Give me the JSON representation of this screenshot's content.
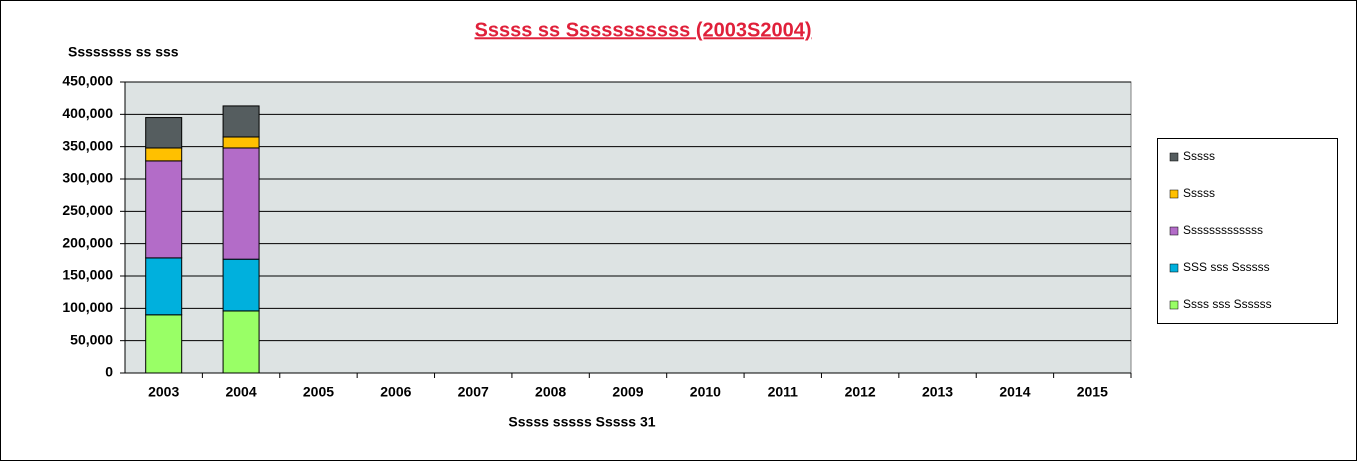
{
  "chart_data": {
    "type": "stacked_bar",
    "title": "Sssss ss Sssssssssss (2003S2004)",
    "y_label": "Ssssssss ss sss",
    "x_label": "Sssss sssss Sssss 31",
    "categories": [
      "2003",
      "2004",
      "2005",
      "2006",
      "2007",
      "2008",
      "2009",
      "2010",
      "2011",
      "2012",
      "2013",
      "2014",
      "2015"
    ],
    "series": [
      {
        "name": "Ssss sss Ssssss",
        "color": "#99ff66",
        "values": [
          90000,
          96000,
          null,
          null,
          null,
          null,
          null,
          null,
          null,
          null,
          null,
          null,
          null
        ]
      },
      {
        "name": "SSS sss Ssssss",
        "color": "#00b0dd",
        "values": [
          88000,
          80000,
          null,
          null,
          null,
          null,
          null,
          null,
          null,
          null,
          null,
          null,
          null
        ]
      },
      {
        "name": "Sssssssssssss",
        "color": "#b36cc8",
        "values": [
          150000,
          172000,
          null,
          null,
          null,
          null,
          null,
          null,
          null,
          null,
          null,
          null,
          null
        ]
      },
      {
        "name": "Sssss",
        "color": "#ffc000",
        "values": [
          20000,
          17000,
          null,
          null,
          null,
          null,
          null,
          null,
          null,
          null,
          null,
          null,
          null
        ]
      },
      {
        "name": "Sssss",
        "color": "#555d5f",
        "values": [
          47000,
          48000,
          null,
          null,
          null,
          null,
          null,
          null,
          null,
          null,
          null,
          null,
          null
        ]
      }
    ],
    "ylim": [
      0,
      450000
    ],
    "yticks": [
      0,
      {
        "value": 50000,
        "label": "50,000"
      },
      {
        "value": 100000,
        "label": "100,000"
      },
      {
        "value": 150000,
        "label": "150,000"
      },
      {
        "value": 200000,
        "label": "200,000"
      },
      {
        "value": 250000,
        "label": "250,000"
      },
      {
        "value": 300000,
        "label": "300,000"
      },
      {
        "value": 350000,
        "label": "350,000"
      },
      {
        "value": 400000,
        "label": "400,000"
      },
      {
        "value": 450000,
        "label": "450,000"
      }
    ],
    "grid": true,
    "legend": "right"
  }
}
